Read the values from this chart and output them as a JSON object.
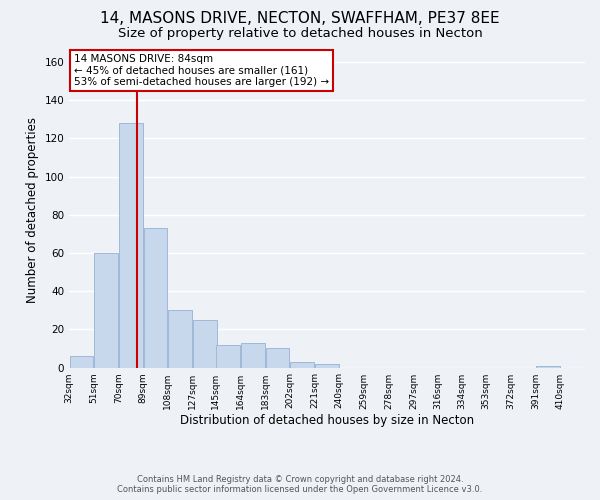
{
  "title": "14, MASONS DRIVE, NECTON, SWAFFHAM, PE37 8EE",
  "subtitle": "Size of property relative to detached houses in Necton",
  "xlabel": "Distribution of detached houses by size in Necton",
  "ylabel": "Number of detached properties",
  "bar_left_edges": [
    32,
    51,
    70,
    89,
    108,
    127,
    145,
    164,
    183,
    202,
    221,
    240,
    259,
    278,
    297,
    316,
    334,
    353,
    372,
    391
  ],
  "bar_heights": [
    6,
    60,
    128,
    73,
    30,
    25,
    12,
    13,
    10,
    3,
    2,
    0,
    0,
    0,
    0,
    0,
    0,
    0,
    0,
    1
  ],
  "bin_width": 19,
  "bar_color": "#c8d8ec",
  "bar_edge_color": "#a0b8d8",
  "vline_x": 84,
  "vline_color": "#cc0000",
  "annotation_text_line1": "14 MASONS DRIVE: 84sqm",
  "annotation_text_line2": "← 45% of detached houses are smaller (161)",
  "annotation_text_line3": "53% of semi-detached houses are larger (192) →",
  "box_edge_color": "#cc0000",
  "ylim": [
    0,
    165
  ],
  "xlim": [
    32,
    429
  ],
  "tick_labels": [
    "32sqm",
    "51sqm",
    "70sqm",
    "89sqm",
    "108sqm",
    "127sqm",
    "145sqm",
    "164sqm",
    "183sqm",
    "202sqm",
    "221sqm",
    "240sqm",
    "259sqm",
    "278sqm",
    "297sqm",
    "316sqm",
    "334sqm",
    "353sqm",
    "372sqm",
    "391sqm",
    "410sqm"
  ],
  "tick_positions": [
    32,
    51,
    70,
    89,
    108,
    127,
    145,
    164,
    183,
    202,
    221,
    240,
    259,
    278,
    297,
    316,
    334,
    353,
    372,
    391,
    410
  ],
  "footer_line1": "Contains HM Land Registry data © Crown copyright and database right 2024.",
  "footer_line2": "Contains public sector information licensed under the Open Government Licence v3.0.",
  "background_color": "#eef2f7",
  "grid_color": "#ffffff",
  "title_fontsize": 11,
  "subtitle_fontsize": 9.5,
  "yticks": [
    0,
    20,
    40,
    60,
    80,
    100,
    120,
    140,
    160
  ]
}
